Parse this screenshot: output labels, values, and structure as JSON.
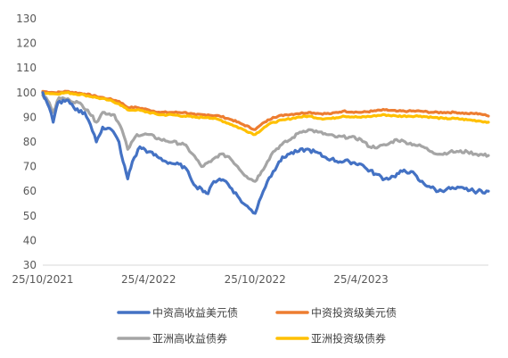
{
  "chart_data": {
    "type": "line",
    "title": "",
    "xlabel": "",
    "ylabel": "",
    "ylim": [
      30,
      130
    ],
    "yticks": [
      30,
      40,
      50,
      60,
      70,
      80,
      90,
      100,
      110,
      120,
      130
    ],
    "xlim": [
      "2021-10-25",
      "2023-11-30"
    ],
    "xticks": [
      {
        "label": "25/10/2021",
        "date": "2021-10-25"
      },
      {
        "label": "25/4/2022",
        "date": "2022-04-25"
      },
      {
        "label": "25/10/2022",
        "date": "2022-10-25"
      },
      {
        "label": "25/4/2023",
        "date": "2023-04-25"
      }
    ],
    "grid": false,
    "legend": "bottom",
    "series": [
      {
        "name": "中资高收益美元债",
        "color": "#4472C4",
        "points": [
          [
            "2021-10-25",
            100
          ],
          [
            "2021-11-05",
            94
          ],
          [
            "2021-11-12",
            88
          ],
          [
            "2021-11-20",
            96
          ],
          [
            "2021-12-05",
            97
          ],
          [
            "2021-12-20",
            93
          ],
          [
            "2022-01-05",
            92
          ],
          [
            "2022-01-15",
            87
          ],
          [
            "2022-01-25",
            80
          ],
          [
            "2022-02-05",
            86
          ],
          [
            "2022-02-20",
            85
          ],
          [
            "2022-03-05",
            80
          ],
          [
            "2022-03-12",
            72
          ],
          [
            "2022-03-20",
            65
          ],
          [
            "2022-03-28",
            72
          ],
          [
            "2022-04-10",
            78
          ],
          [
            "2022-04-25",
            76
          ],
          [
            "2022-05-10",
            74
          ],
          [
            "2022-05-25",
            72
          ],
          [
            "2022-06-10",
            71
          ],
          [
            "2022-06-25",
            70
          ],
          [
            "2022-07-05",
            66
          ],
          [
            "2022-07-15",
            62
          ],
          [
            "2022-07-25",
            61
          ],
          [
            "2022-08-05",
            59
          ],
          [
            "2022-08-15",
            64
          ],
          [
            "2022-08-25",
            65
          ],
          [
            "2022-09-05",
            64
          ],
          [
            "2022-09-15",
            61
          ],
          [
            "2022-09-25",
            58
          ],
          [
            "2022-10-05",
            55
          ],
          [
            "2022-10-15",
            53
          ],
          [
            "2022-10-25",
            51
          ],
          [
            "2022-11-01",
            56
          ],
          [
            "2022-11-08",
            60
          ],
          [
            "2022-11-15",
            64
          ],
          [
            "2022-11-25",
            68
          ],
          [
            "2022-12-05",
            72
          ],
          [
            "2022-12-20",
            75
          ],
          [
            "2023-01-05",
            76
          ],
          [
            "2023-01-20",
            77
          ],
          [
            "2023-02-05",
            76
          ],
          [
            "2023-02-20",
            74
          ],
          [
            "2023-03-05",
            73
          ],
          [
            "2023-03-20",
            72
          ],
          [
            "2023-04-05",
            72
          ],
          [
            "2023-04-25",
            71
          ],
          [
            "2023-05-05",
            69
          ],
          [
            "2023-05-20",
            67
          ],
          [
            "2023-06-05",
            65
          ],
          [
            "2023-06-20",
            66
          ],
          [
            "2023-07-05",
            68
          ],
          [
            "2023-07-20",
            68
          ],
          [
            "2023-08-05",
            64
          ],
          [
            "2023-08-20",
            62
          ],
          [
            "2023-09-05",
            60
          ],
          [
            "2023-09-20",
            61
          ],
          [
            "2023-10-05",
            61
          ],
          [
            "2023-10-20",
            61
          ],
          [
            "2023-11-05",
            60
          ],
          [
            "2023-11-30",
            60
          ]
        ]
      },
      {
        "name": "中资投资级美元债",
        "color": "#ED7D31",
        "points": [
          [
            "2021-10-25",
            100.5
          ],
          [
            "2021-11-15",
            100
          ],
          [
            "2021-12-05",
            100.5
          ],
          [
            "2022-01-05",
            99.5
          ],
          [
            "2022-01-25",
            98.5
          ],
          [
            "2022-02-15",
            97.5
          ],
          [
            "2022-03-05",
            96.5
          ],
          [
            "2022-03-20",
            94
          ],
          [
            "2022-04-05",
            94
          ],
          [
            "2022-04-25",
            93
          ],
          [
            "2022-05-15",
            92
          ],
          [
            "2022-06-05",
            92
          ],
          [
            "2022-06-25",
            92
          ],
          [
            "2022-07-15",
            91
          ],
          [
            "2022-08-05",
            91
          ],
          [
            "2022-08-25",
            90.5
          ],
          [
            "2022-09-15",
            89
          ],
          [
            "2022-10-05",
            87
          ],
          [
            "2022-10-25",
            85
          ],
          [
            "2022-11-10",
            88
          ],
          [
            "2022-11-25",
            90
          ],
          [
            "2022-12-15",
            91
          ],
          [
            "2023-01-05",
            91.5
          ],
          [
            "2023-01-25",
            92
          ],
          [
            "2023-02-15",
            91.5
          ],
          [
            "2023-03-05",
            91.5
          ],
          [
            "2023-03-25",
            92.5
          ],
          [
            "2023-04-25",
            92
          ],
          [
            "2023-05-15",
            92.5
          ],
          [
            "2023-06-05",
            93
          ],
          [
            "2023-06-25",
            92.5
          ],
          [
            "2023-07-15",
            92.5
          ],
          [
            "2023-08-05",
            92.5
          ],
          [
            "2023-08-25",
            92
          ],
          [
            "2023-09-15",
            92
          ],
          [
            "2023-10-05",
            92
          ],
          [
            "2023-10-25",
            91.5
          ],
          [
            "2023-11-15",
            91.5
          ],
          [
            "2023-11-30",
            90.5
          ]
        ]
      },
      {
        "name": "亚洲高收益债券",
        "color": "#A5A5A5",
        "points": [
          [
            "2021-10-25",
            99
          ],
          [
            "2021-11-05",
            96
          ],
          [
            "2021-11-12",
            92
          ],
          [
            "2021-11-22",
            98
          ],
          [
            "2021-12-10",
            97
          ],
          [
            "2021-12-25",
            96
          ],
          [
            "2022-01-10",
            93
          ],
          [
            "2022-01-25",
            88
          ],
          [
            "2022-02-05",
            92
          ],
          [
            "2022-02-25",
            91
          ],
          [
            "2022-03-10",
            85
          ],
          [
            "2022-03-20",
            77
          ],
          [
            "2022-04-05",
            83
          ],
          [
            "2022-04-25",
            83
          ],
          [
            "2022-05-15",
            81
          ],
          [
            "2022-06-05",
            80
          ],
          [
            "2022-06-25",
            79
          ],
          [
            "2022-07-10",
            75
          ],
          [
            "2022-07-25",
            70
          ],
          [
            "2022-08-10",
            72
          ],
          [
            "2022-08-25",
            75
          ],
          [
            "2022-09-10",
            74
          ],
          [
            "2022-09-25",
            70
          ],
          [
            "2022-10-10",
            66
          ],
          [
            "2022-10-25",
            64
          ],
          [
            "2022-11-05",
            68
          ],
          [
            "2022-11-15",
            72
          ],
          [
            "2022-11-25",
            76
          ],
          [
            "2022-12-10",
            79
          ],
          [
            "2022-12-25",
            81
          ],
          [
            "2023-01-10",
            84
          ],
          [
            "2023-01-25",
            85
          ],
          [
            "2023-02-10",
            84
          ],
          [
            "2023-02-25",
            83
          ],
          [
            "2023-03-15",
            82
          ],
          [
            "2023-04-05",
            82
          ],
          [
            "2023-04-25",
            81
          ],
          [
            "2023-05-10",
            78
          ],
          [
            "2023-05-25",
            78
          ],
          [
            "2023-06-10",
            79
          ],
          [
            "2023-06-25",
            81
          ],
          [
            "2023-07-10",
            80
          ],
          [
            "2023-07-25",
            79
          ],
          [
            "2023-08-10",
            78
          ],
          [
            "2023-08-25",
            76
          ],
          [
            "2023-09-10",
            75
          ],
          [
            "2023-09-25",
            76
          ],
          [
            "2023-10-10",
            76
          ],
          [
            "2023-10-25",
            76
          ],
          [
            "2023-11-10",
            75
          ],
          [
            "2023-11-30",
            74.5
          ]
        ]
      },
      {
        "name": "亚洲投资级债券",
        "color": "#FFC000",
        "points": [
          [
            "2021-10-25",
            100
          ],
          [
            "2021-11-15",
            99.5
          ],
          [
            "2021-12-05",
            100
          ],
          [
            "2022-01-05",
            99
          ],
          [
            "2022-01-25",
            98
          ],
          [
            "2022-02-15",
            97
          ],
          [
            "2022-03-05",
            95.5
          ],
          [
            "2022-03-20",
            93
          ],
          [
            "2022-04-05",
            93
          ],
          [
            "2022-04-25",
            92
          ],
          [
            "2022-05-15",
            91
          ],
          [
            "2022-06-05",
            91
          ],
          [
            "2022-06-25",
            90.5
          ],
          [
            "2022-07-15",
            90
          ],
          [
            "2022-08-05",
            90
          ],
          [
            "2022-08-25",
            89
          ],
          [
            "2022-09-15",
            87
          ],
          [
            "2022-10-05",
            85
          ],
          [
            "2022-10-25",
            83
          ],
          [
            "2022-11-10",
            86
          ],
          [
            "2022-11-25",
            88
          ],
          [
            "2022-12-15",
            89
          ],
          [
            "2023-01-05",
            90
          ],
          [
            "2023-01-25",
            90.5
          ],
          [
            "2023-02-15",
            89.5
          ],
          [
            "2023-03-05",
            89.5
          ],
          [
            "2023-03-25",
            90.5
          ],
          [
            "2023-04-25",
            90
          ],
          [
            "2023-05-15",
            90.5
          ],
          [
            "2023-06-05",
            91
          ],
          [
            "2023-06-25",
            90.5
          ],
          [
            "2023-07-15",
            90.5
          ],
          [
            "2023-08-05",
            90.5
          ],
          [
            "2023-08-25",
            90
          ],
          [
            "2023-09-15",
            89.5
          ],
          [
            "2023-10-05",
            89.5
          ],
          [
            "2023-10-25",
            89
          ],
          [
            "2023-11-15",
            88.5
          ],
          [
            "2023-11-30",
            88
          ]
        ]
      }
    ]
  }
}
